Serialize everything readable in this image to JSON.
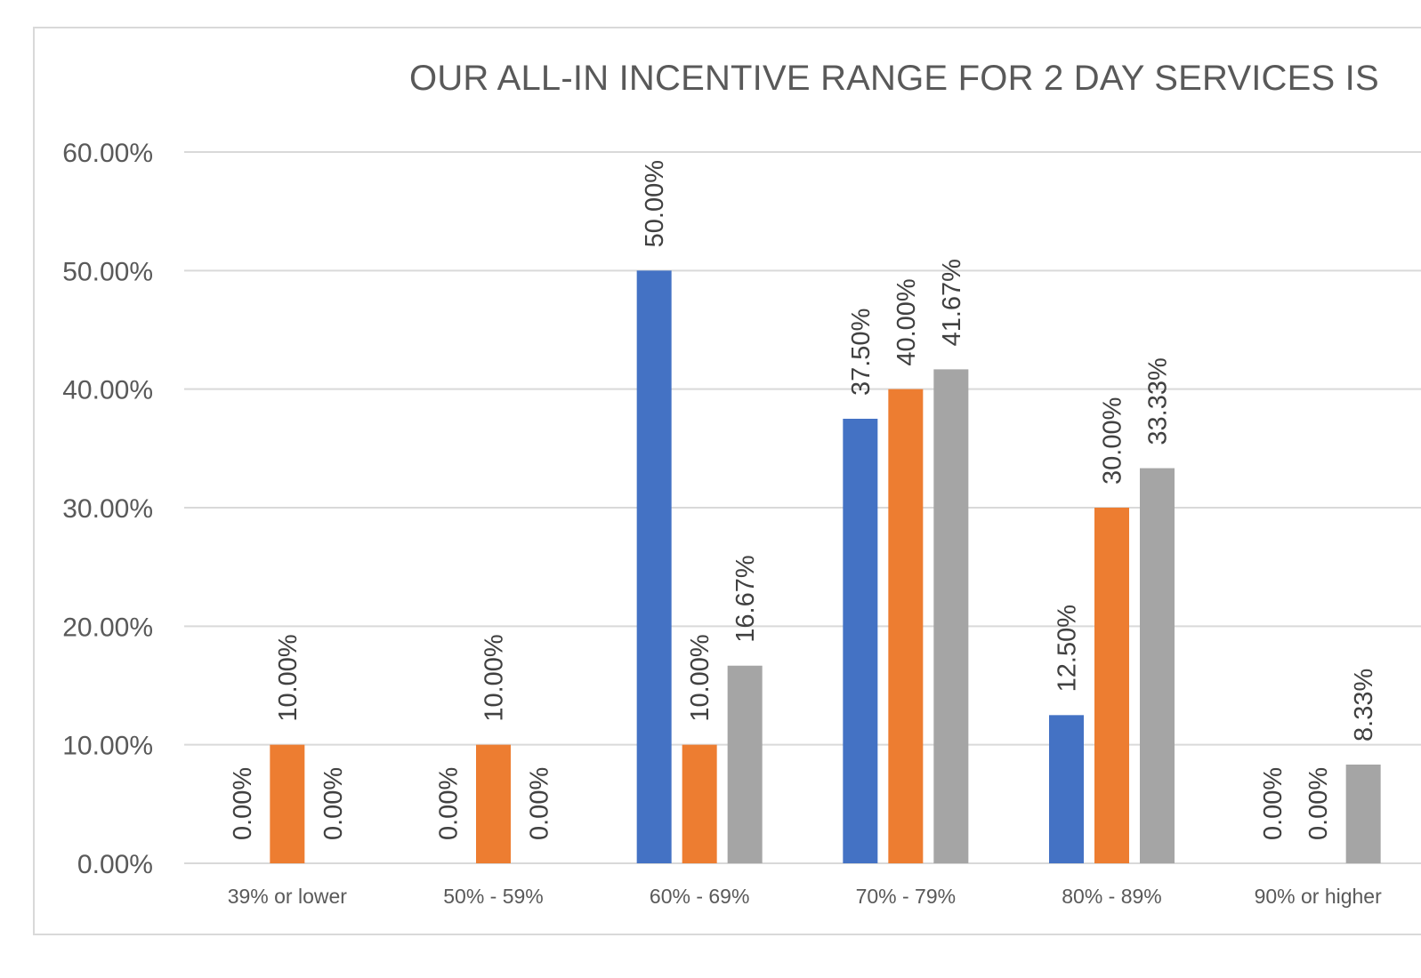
{
  "chart_data": {
    "type": "bar",
    "title": "OUR ALL-IN INCENTIVE RANGE FOR 2 DAY SERVICES IS",
    "xlabel": "",
    "ylabel": "",
    "categories": [
      "39% or lower",
      "50% - 59%",
      "60% - 69%",
      "70% - 79%",
      "80% - 89%",
      "90% or higher"
    ],
    "series": [
      {
        "color": "#4472c4",
        "values": [
          0,
          0,
          50,
          37.5,
          12.5,
          0
        ],
        "labels": [
          "0.00%",
          "0.00%",
          "50.00%",
          "37.50%",
          "12.50%",
          "0.00%"
        ]
      },
      {
        "color": "#ed7d31",
        "values": [
          10,
          10,
          10,
          40,
          30,
          0
        ],
        "labels": [
          "10.00%",
          "10.00%",
          "10.00%",
          "40.00%",
          "30.00%",
          "0.00%"
        ]
      },
      {
        "color": "#a5a5a5",
        "values": [
          0,
          0,
          16.67,
          41.67,
          33.33,
          8.33
        ],
        "labels": [
          "0.00%",
          "0.00%",
          "16.67%",
          "41.67%",
          "33.33%",
          "8.33%"
        ]
      }
    ],
    "ylim": [
      0,
      60
    ],
    "yticks": [
      "0.00%",
      "10.00%",
      "20.00%",
      "30.00%",
      "40.00%",
      "50.00%",
      "60.00%"
    ],
    "grid": true,
    "legend": "none"
  }
}
